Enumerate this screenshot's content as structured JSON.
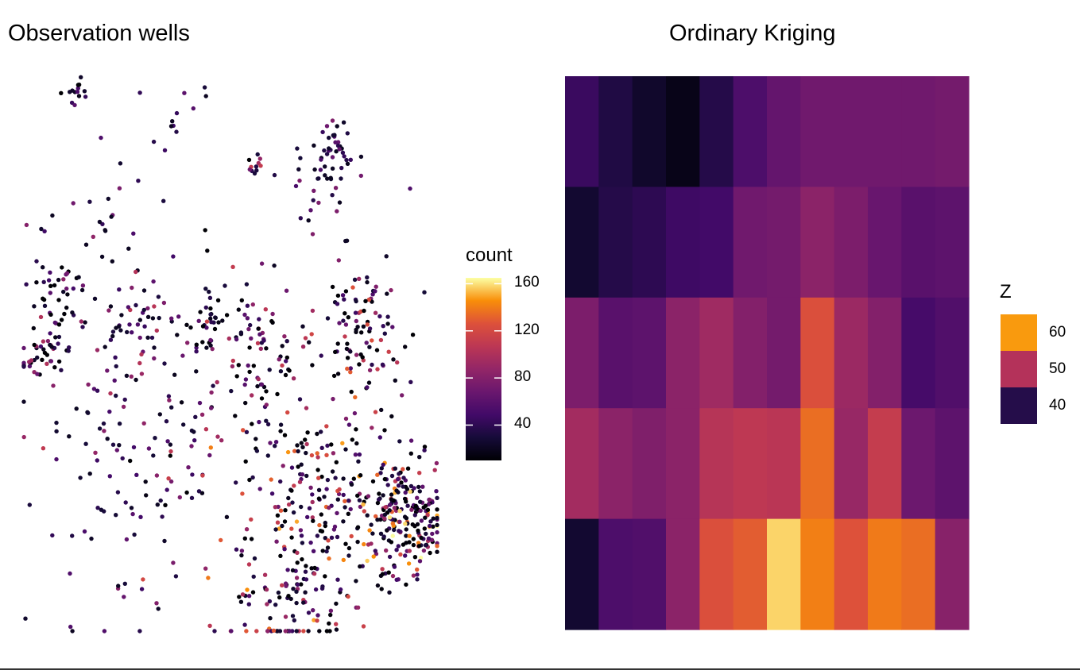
{
  "chart_data": [
    {
      "type": "scatter",
      "title": "Observation wells",
      "color_legend": {
        "title": "count",
        "ticks": [
          40,
          80,
          120,
          160
        ],
        "range": [
          10,
          165
        ],
        "palette": "inferno"
      },
      "clusters": [
        {
          "cx": 0.74,
          "cy": 0.19,
          "spread": 0.05,
          "n": 40,
          "vmin": 20,
          "vmax": 90
        },
        {
          "cx": 0.75,
          "cy": 0.13,
          "spread": 0.02,
          "n": 25,
          "vmin": 20,
          "vmax": 70
        },
        {
          "cx": 0.56,
          "cy": 0.17,
          "spread": 0.015,
          "n": 10,
          "vmin": 30,
          "vmax": 130
        },
        {
          "cx": 0.82,
          "cy": 0.45,
          "spread": 0.05,
          "n": 90,
          "vmin": 10,
          "vmax": 130
        },
        {
          "cx": 0.55,
          "cy": 0.5,
          "spread": 0.08,
          "n": 90,
          "vmin": 10,
          "vmax": 120
        },
        {
          "cx": 0.44,
          "cy": 0.44,
          "spread": 0.03,
          "n": 30,
          "vmin": 10,
          "vmax": 70
        },
        {
          "cx": 0.28,
          "cy": 0.45,
          "spread": 0.05,
          "n": 40,
          "vmin": 20,
          "vmax": 110
        },
        {
          "cx": 0.05,
          "cy": 0.5,
          "spread": 0.03,
          "n": 45,
          "vmin": 10,
          "vmax": 110
        },
        {
          "cx": 0.07,
          "cy": 0.4,
          "spread": 0.03,
          "n": 30,
          "vmin": 10,
          "vmax": 70
        },
        {
          "cx": 0.17,
          "cy": 0.31,
          "spread": 0.08,
          "n": 35,
          "vmin": 20,
          "vmax": 100
        },
        {
          "cx": 0.2,
          "cy": 0.6,
          "spread": 0.1,
          "n": 55,
          "vmin": 20,
          "vmax": 110
        },
        {
          "cx": 0.4,
          "cy": 0.7,
          "spread": 0.08,
          "n": 45,
          "vmin": 10,
          "vmax": 120
        },
        {
          "cx": 0.7,
          "cy": 0.76,
          "spread": 0.12,
          "n": 260,
          "vmin": 10,
          "vmax": 150
        },
        {
          "cx": 0.92,
          "cy": 0.8,
          "spread": 0.05,
          "n": 220,
          "vmin": 10,
          "vmax": 165
        },
        {
          "cx": 0.65,
          "cy": 0.95,
          "spread": 0.06,
          "n": 70,
          "vmin": 10,
          "vmax": 130
        },
        {
          "cx": 0.25,
          "cy": 0.85,
          "spread": 0.12,
          "n": 40,
          "vmin": 20,
          "vmax": 100
        },
        {
          "cx": 0.12,
          "cy": 0.04,
          "spread": 0.015,
          "n": 14,
          "vmin": 10,
          "vmax": 60
        },
        {
          "cx": 0.35,
          "cy": 0.09,
          "spread": 0.05,
          "n": 12,
          "vmin": 20,
          "vmax": 80
        }
      ]
    },
    {
      "type": "heatmap",
      "title": "Ordinary Kriging",
      "rows": 5,
      "cols": 12,
      "values": [
        [
          42.5,
          39.5,
          37,
          35,
          40,
          45,
          48,
          49.5,
          49.5,
          49.5,
          49.5,
          50
        ],
        [
          37.5,
          40,
          41,
          43,
          43.5,
          49.5,
          50,
          53,
          51,
          48.5,
          46.5,
          47
        ],
        [
          51,
          46.5,
          47,
          53,
          55.5,
          52,
          50,
          64,
          55,
          52,
          44,
          45.5
        ],
        [
          56,
          53,
          51.5,
          53,
          58.5,
          59.5,
          59,
          67,
          54.5,
          60.5,
          49,
          47
        ],
        [
          37.5,
          45,
          45.5,
          53,
          64,
          65.5,
          73,
          68.5,
          64.5,
          68,
          67,
          52.5
        ]
      ],
      "fill_legend": {
        "title": "Z",
        "items": [
          {
            "label": "60",
            "color": "#f99a0e"
          },
          {
            "label": "50",
            "color": "#b4325a"
          },
          {
            "label": "40",
            "color": "#250d4a"
          }
        ]
      }
    }
  ]
}
